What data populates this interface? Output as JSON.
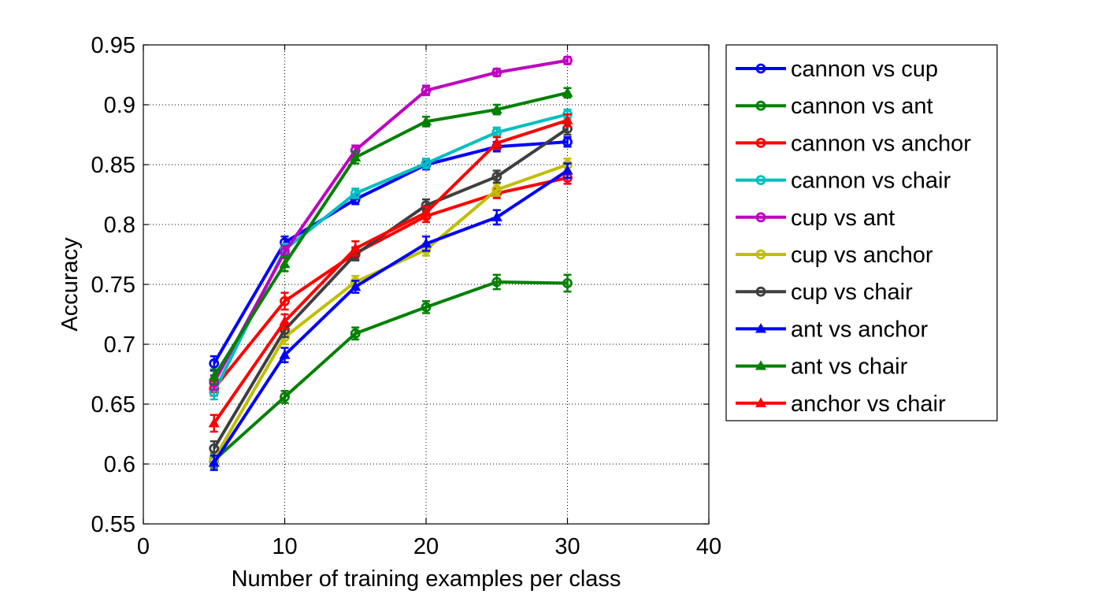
{
  "chart_data": {
    "type": "line",
    "title": "",
    "xlabel": "Number of training examples per class",
    "ylabel": "Accuracy",
    "xlim": [
      0,
      40
    ],
    "ylim": [
      0.55,
      0.95
    ],
    "xticks": [
      0,
      10,
      20,
      30,
      40
    ],
    "xtick_labels": [
      "0",
      "10",
      "20",
      "30",
      "40"
    ],
    "yticks": [
      0.55,
      0.6,
      0.65,
      0.7,
      0.75,
      0.8,
      0.85,
      0.9,
      0.95
    ],
    "ytick_labels": [
      "0.55",
      "0.6",
      "0.65",
      "0.7",
      "0.75",
      "0.8",
      "0.85",
      "0.9",
      "0.95"
    ],
    "grid": true,
    "legend_position": "outside-right",
    "x": [
      5,
      10,
      15,
      20,
      25,
      30
    ],
    "series": [
      {
        "name": "cannon vs cup",
        "color": "#0000ff",
        "marker": "circle",
        "values": [
          0.684,
          0.785,
          0.821,
          0.85,
          0.865,
          0.869
        ],
        "errors": [
          0.006,
          0.005,
          0.004,
          0.004,
          0.004,
          0.004
        ]
      },
      {
        "name": "cannon vs ant",
        "color": "#008000",
        "marker": "circle",
        "values": [
          0.603,
          0.656,
          0.709,
          0.731,
          0.752,
          0.751
        ],
        "errors": [
          0.006,
          0.005,
          0.005,
          0.005,
          0.006,
          0.007
        ]
      },
      {
        "name": "cannon vs anchor",
        "color": "#ff0000",
        "marker": "circle",
        "values": [
          0.663,
          0.736,
          0.776,
          0.807,
          0.826,
          0.839
        ],
        "errors": [
          0.006,
          0.007,
          0.005,
          0.005,
          0.004,
          0.005
        ]
      },
      {
        "name": "cannon vs chair",
        "color": "#00bfbf",
        "marker": "circle",
        "values": [
          0.66,
          0.779,
          0.826,
          0.851,
          0.877,
          0.892
        ],
        "errors": [
          0.006,
          0.005,
          0.004,
          0.004,
          0.004,
          0.004
        ]
      },
      {
        "name": "cup vs ant",
        "color": "#bf00bf",
        "marker": "circle",
        "values": [
          0.668,
          0.777,
          0.862,
          0.912,
          0.927,
          0.937
        ],
        "errors": [
          0.006,
          0.005,
          0.004,
          0.004,
          0.003,
          0.003
        ]
      },
      {
        "name": "cup vs anchor",
        "color": "#bfbf00",
        "marker": "circle",
        "values": [
          0.604,
          0.706,
          0.752,
          0.779,
          0.829,
          0.85
        ],
        "errors": [
          0.006,
          0.006,
          0.005,
          0.005,
          0.005,
          0.005
        ]
      },
      {
        "name": "cup vs chair",
        "color": "#3f3f3f",
        "marker": "circle",
        "values": [
          0.613,
          0.712,
          0.775,
          0.816,
          0.84,
          0.88
        ],
        "errors": [
          0.006,
          0.006,
          0.005,
          0.005,
          0.005,
          0.005
        ]
      },
      {
        "name": "ant vs anchor",
        "color": "#0000ff",
        "marker": "triangle",
        "values": [
          0.601,
          0.691,
          0.748,
          0.784,
          0.806,
          0.845
        ],
        "errors": [
          0.006,
          0.006,
          0.005,
          0.006,
          0.006,
          0.006
        ]
      },
      {
        "name": "ant vs chair",
        "color": "#008000",
        "marker": "triangle",
        "values": [
          0.673,
          0.767,
          0.856,
          0.886,
          0.896,
          0.91
        ],
        "errors": [
          0.006,
          0.006,
          0.005,
          0.004,
          0.004,
          0.004
        ]
      },
      {
        "name": "anchor vs chair",
        "color": "#ff0000",
        "marker": "triangle",
        "values": [
          0.634,
          0.719,
          0.78,
          0.81,
          0.868,
          0.887
        ],
        "errors": [
          0.007,
          0.006,
          0.006,
          0.005,
          0.005,
          0.005
        ]
      }
    ]
  }
}
